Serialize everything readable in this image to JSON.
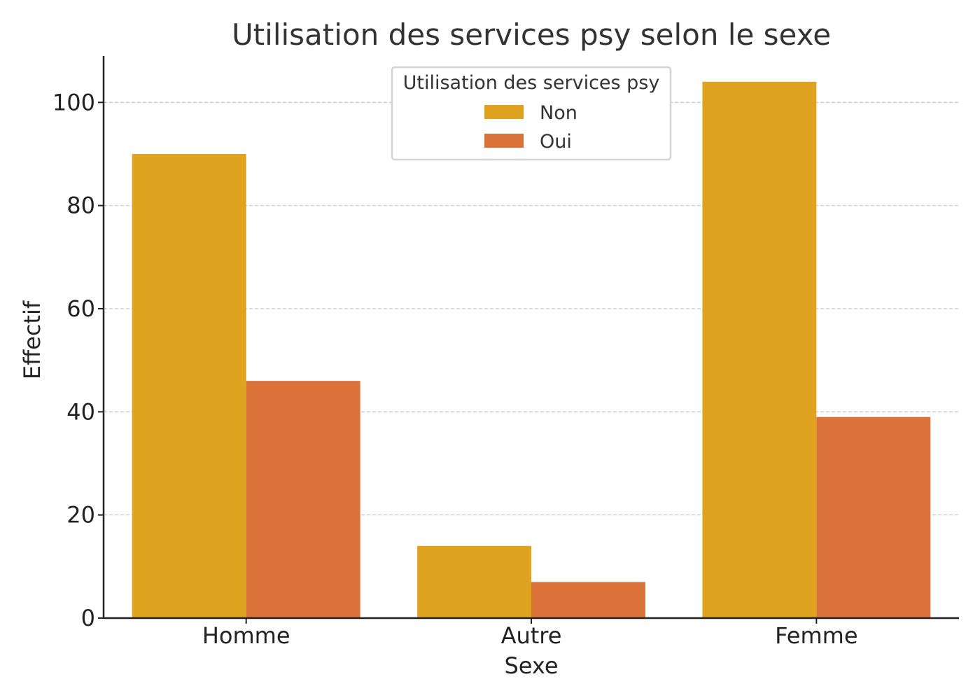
{
  "chart_data": {
    "type": "bar",
    "title": "Utilisation des services psy selon le sexe",
    "xlabel": "Sexe",
    "ylabel": "Effectif",
    "categories": [
      "Homme",
      "Autre",
      "Femme"
    ],
    "series": [
      {
        "name": "Non",
        "values": [
          90,
          14,
          104
        ],
        "color": "#DFA320"
      },
      {
        "name": "Oui",
        "values": [
          46,
          7,
          39
        ],
        "color": "#DB723A"
      }
    ],
    "ylim": [
      0,
      109
    ],
    "yticks": [
      0,
      20,
      40,
      60,
      80,
      100
    ],
    "grid": true,
    "legend": {
      "title": "Utilisation des services psy",
      "placement": "top-center"
    }
  }
}
